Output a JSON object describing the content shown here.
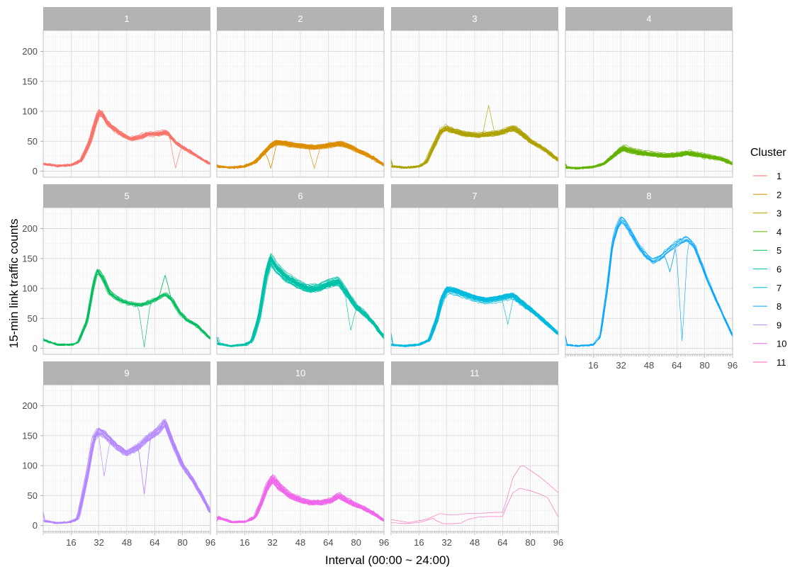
{
  "chart_data": {
    "type": "line",
    "layout": "facet-grid",
    "xlabel": "Interval (00:00 ~ 24:00)",
    "ylabel": "15-min link traffic counts",
    "xlim": [
      0,
      96
    ],
    "ylim": [
      -10,
      235
    ],
    "xticks": [
      16,
      32,
      48,
      64,
      80,
      96
    ],
    "yticks": [
      0,
      50,
      100,
      150,
      200
    ],
    "grid": true,
    "legend": {
      "title": "Cluster",
      "position": "right",
      "entries": [
        "1",
        "2",
        "3",
        "4",
        "5",
        "6",
        "7",
        "8",
        "9",
        "10",
        "11"
      ]
    },
    "panels": [
      {
        "label": "1",
        "color": "#F8766D",
        "n_lines": 35,
        "noise": 0.07,
        "profile": [
          [
            0,
            12
          ],
          [
            8,
            9
          ],
          [
            16,
            10
          ],
          [
            22,
            18
          ],
          [
            27,
            50
          ],
          [
            30,
            80
          ],
          [
            32,
            98
          ],
          [
            34,
            95
          ],
          [
            37,
            80
          ],
          [
            41,
            70
          ],
          [
            46,
            60
          ],
          [
            50,
            54
          ],
          [
            56,
            57
          ],
          [
            60,
            62
          ],
          [
            66,
            62
          ],
          [
            70,
            65
          ],
          [
            72,
            62
          ],
          [
            76,
            48
          ],
          [
            80,
            40
          ],
          [
            86,
            30
          ],
          [
            90,
            22
          ],
          [
            96,
            12
          ]
        ],
        "spikes": [
          {
            "x": 76,
            "y": 5
          }
        ]
      },
      {
        "label": "2",
        "color": "#DB8E00",
        "n_lines": 40,
        "noise": 0.12,
        "profile": [
          [
            0,
            8
          ],
          [
            8,
            6
          ],
          [
            16,
            8
          ],
          [
            22,
            15
          ],
          [
            27,
            30
          ],
          [
            31,
            42
          ],
          [
            34,
            48
          ],
          [
            38,
            47
          ],
          [
            44,
            44
          ],
          [
            50,
            42
          ],
          [
            56,
            40
          ],
          [
            62,
            42
          ],
          [
            66,
            44
          ],
          [
            70,
            46
          ],
          [
            74,
            44
          ],
          [
            80,
            36
          ],
          [
            86,
            28
          ],
          [
            90,
            22
          ],
          [
            96,
            10
          ]
        ],
        "spikes": [
          {
            "x": 56,
            "y": 5
          },
          {
            "x": 31,
            "y": 5
          }
        ]
      },
      {
        "label": "3",
        "color": "#AEA200",
        "n_lines": 30,
        "noise": 0.1,
        "profile": [
          [
            0,
            8
          ],
          [
            8,
            6
          ],
          [
            16,
            8
          ],
          [
            20,
            15
          ],
          [
            24,
            40
          ],
          [
            28,
            65
          ],
          [
            31,
            72
          ],
          [
            35,
            68
          ],
          [
            42,
            62
          ],
          [
            50,
            60
          ],
          [
            56,
            62
          ],
          [
            62,
            64
          ],
          [
            66,
            68
          ],
          [
            70,
            72
          ],
          [
            74,
            65
          ],
          [
            80,
            50
          ],
          [
            86,
            40
          ],
          [
            90,
            32
          ],
          [
            96,
            18
          ]
        ],
        "spikes": [
          {
            "x": 56,
            "y": 110
          }
        ]
      },
      {
        "label": "4",
        "color": "#64B200",
        "n_lines": 40,
        "noise": 0.15,
        "profile": [
          [
            0,
            6
          ],
          [
            8,
            5
          ],
          [
            16,
            7
          ],
          [
            22,
            12
          ],
          [
            27,
            24
          ],
          [
            30,
            32
          ],
          [
            33,
            38
          ],
          [
            37,
            34
          ],
          [
            44,
            30
          ],
          [
            52,
            27
          ],
          [
            58,
            26
          ],
          [
            64,
            27
          ],
          [
            70,
            30
          ],
          [
            74,
            28
          ],
          [
            80,
            25
          ],
          [
            86,
            22
          ],
          [
            90,
            20
          ],
          [
            96,
            12
          ]
        ],
        "spikes": []
      },
      {
        "label": "5",
        "color": "#00BD5C",
        "n_lines": 14,
        "noise": 0.06,
        "profile": [
          [
            0,
            14
          ],
          [
            8,
            6
          ],
          [
            16,
            6
          ],
          [
            20,
            10
          ],
          [
            25,
            45
          ],
          [
            29,
            110
          ],
          [
            31,
            130
          ],
          [
            34,
            118
          ],
          [
            38,
            92
          ],
          [
            44,
            80
          ],
          [
            50,
            74
          ],
          [
            56,
            72
          ],
          [
            62,
            78
          ],
          [
            66,
            84
          ],
          [
            70,
            90
          ],
          [
            74,
            80
          ],
          [
            78,
            60
          ],
          [
            82,
            48
          ],
          [
            88,
            38
          ],
          [
            96,
            16
          ]
        ],
        "spikes": [
          {
            "x": 58,
            "y": 2
          },
          {
            "x": 70,
            "y": 122
          }
        ]
      },
      {
        "label": "6",
        "color": "#00C1A7",
        "n_lines": 40,
        "noise": 0.08,
        "profile": [
          [
            0,
            8
          ],
          [
            8,
            4
          ],
          [
            16,
            6
          ],
          [
            20,
            12
          ],
          [
            24,
            50
          ],
          [
            28,
            120
          ],
          [
            31,
            150
          ],
          [
            34,
            135
          ],
          [
            40,
            118
          ],
          [
            46,
            108
          ],
          [
            52,
            100
          ],
          [
            58,
            100
          ],
          [
            64,
            108
          ],
          [
            70,
            112
          ],
          [
            74,
            95
          ],
          [
            80,
            70
          ],
          [
            86,
            55
          ],
          [
            90,
            42
          ],
          [
            96,
            18
          ]
        ],
        "spikes": [
          {
            "x": 77,
            "y": 30
          }
        ]
      },
      {
        "label": "7",
        "color": "#00BADE",
        "n_lines": 35,
        "noise": 0.08,
        "profile": [
          [
            0,
            6
          ],
          [
            8,
            4
          ],
          [
            16,
            6
          ],
          [
            22,
            14
          ],
          [
            26,
            45
          ],
          [
            29,
            80
          ],
          [
            32,
            98
          ],
          [
            36,
            96
          ],
          [
            42,
            90
          ],
          [
            48,
            84
          ],
          [
            54,
            80
          ],
          [
            60,
            82
          ],
          [
            66,
            86
          ],
          [
            70,
            88
          ],
          [
            74,
            78
          ],
          [
            80,
            65
          ],
          [
            86,
            50
          ],
          [
            90,
            40
          ],
          [
            96,
            24
          ]
        ],
        "spikes": [
          {
            "x": 67,
            "y": 40
          }
        ]
      },
      {
        "label": "8",
        "color": "#00A6FF",
        "n_lines": 10,
        "noise": 0.05,
        "profile": [
          [
            0,
            6
          ],
          [
            8,
            4
          ],
          [
            16,
            6
          ],
          [
            20,
            20
          ],
          [
            24,
            100
          ],
          [
            27,
            175
          ],
          [
            30,
            205
          ],
          [
            32,
            215
          ],
          [
            34,
            210
          ],
          [
            38,
            190
          ],
          [
            42,
            170
          ],
          [
            46,
            155
          ],
          [
            50,
            145
          ],
          [
            54,
            150
          ],
          [
            58,
            160
          ],
          [
            62,
            170
          ],
          [
            66,
            178
          ],
          [
            70,
            182
          ],
          [
            74,
            170
          ],
          [
            78,
            140
          ],
          [
            82,
            110
          ],
          [
            88,
            70
          ],
          [
            92,
            45
          ],
          [
            96,
            20
          ]
        ],
        "spikes": [
          {
            "x": 67,
            "y": 12
          },
          {
            "x": 60,
            "y": 128
          }
        ]
      },
      {
        "label": "9",
        "color": "#B385FF",
        "n_lines": 20,
        "noise": 0.05,
        "profile": [
          [
            0,
            8
          ],
          [
            8,
            4
          ],
          [
            16,
            6
          ],
          [
            20,
            12
          ],
          [
            25,
            80
          ],
          [
            29,
            145
          ],
          [
            32,
            158
          ],
          [
            36,
            150
          ],
          [
            42,
            132
          ],
          [
            48,
            120
          ],
          [
            54,
            130
          ],
          [
            60,
            145
          ],
          [
            66,
            158
          ],
          [
            70,
            172
          ],
          [
            74,
            140
          ],
          [
            80,
            100
          ],
          [
            86,
            75
          ],
          [
            90,
            55
          ],
          [
            96,
            22
          ]
        ],
        "spikes": [
          {
            "x": 35,
            "y": 82
          },
          {
            "x": 58,
            "y": 52
          }
        ]
      },
      {
        "label": "10",
        "color": "#EF67EB",
        "n_lines": 30,
        "noise": 0.12,
        "profile": [
          [
            0,
            14
          ],
          [
            8,
            6
          ],
          [
            16,
            6
          ],
          [
            22,
            14
          ],
          [
            26,
            40
          ],
          [
            29,
            65
          ],
          [
            32,
            78
          ],
          [
            36,
            64
          ],
          [
            42,
            50
          ],
          [
            48,
            42
          ],
          [
            54,
            38
          ],
          [
            60,
            38
          ],
          [
            66,
            42
          ],
          [
            70,
            50
          ],
          [
            74,
            42
          ],
          [
            80,
            34
          ],
          [
            86,
            26
          ],
          [
            90,
            20
          ],
          [
            96,
            8
          ]
        ],
        "spikes": []
      },
      {
        "label": "11",
        "color": "#FF63B6",
        "n_lines": 0,
        "noise": 0,
        "profile": [
          [
            0,
            0
          ],
          [
            96,
            0
          ]
        ],
        "spikes": [],
        "lines": [
          [
            [
              0,
              10
            ],
            [
              10,
              5
            ],
            [
              20,
              10
            ],
            [
              24,
              15
            ],
            [
              28,
              20
            ],
            [
              32,
              18
            ],
            [
              38,
              18
            ],
            [
              44,
              20
            ],
            [
              50,
              20
            ],
            [
              60,
              22
            ],
            [
              64,
              22
            ],
            [
              66,
              40
            ],
            [
              70,
              80
            ],
            [
              74,
              98
            ],
            [
              76,
              100
            ],
            [
              80,
              92
            ],
            [
              86,
              80
            ],
            [
              90,
              70
            ],
            [
              96,
              55
            ]
          ],
          [
            [
              0,
              5
            ],
            [
              8,
              3
            ],
            [
              16,
              5
            ],
            [
              20,
              8
            ],
            [
              24,
              12
            ],
            [
              26,
              8
            ],
            [
              30,
              3
            ],
            [
              36,
              3
            ],
            [
              40,
              4
            ],
            [
              44,
              10
            ],
            [
              50,
              14
            ],
            [
              56,
              15
            ],
            [
              64,
              15
            ],
            [
              66,
              30
            ],
            [
              70,
              55
            ],
            [
              74,
              62
            ],
            [
              80,
              58
            ],
            [
              86,
              52
            ],
            [
              90,
              46
            ],
            [
              96,
              14
            ]
          ]
        ]
      }
    ]
  }
}
